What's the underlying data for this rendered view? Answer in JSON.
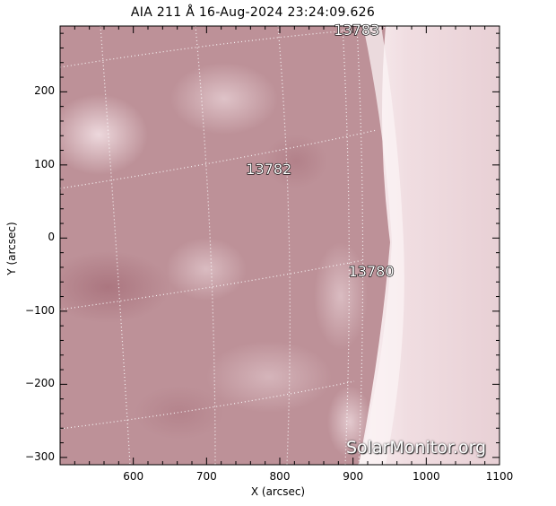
{
  "title": "AIA 211 Å 16-Aug-2024 23:24:09.626",
  "axes": {
    "xlabel": "X (arcsec)",
    "ylabel": "Y (arcsec)",
    "xlim": [
      500,
      1100
    ],
    "ylim": [
      -310,
      290
    ],
    "xticks": [
      "600",
      "700",
      "800",
      "900",
      "1000",
      "1100"
    ],
    "yticks": [
      "200",
      "100",
      "0",
      "−100",
      "−200",
      "−300"
    ]
  },
  "regions": [
    {
      "label": "13783",
      "x": 905,
      "y": 285
    },
    {
      "label": "13782",
      "x": 785,
      "y": 95
    },
    {
      "label": "13780",
      "x": 925,
      "y": -45
    }
  ],
  "watermark": "SolarMonitor.org",
  "colors": {
    "background": "#ba8f96",
    "limb": "#f7ecee",
    "grid": "#ffffff"
  }
}
